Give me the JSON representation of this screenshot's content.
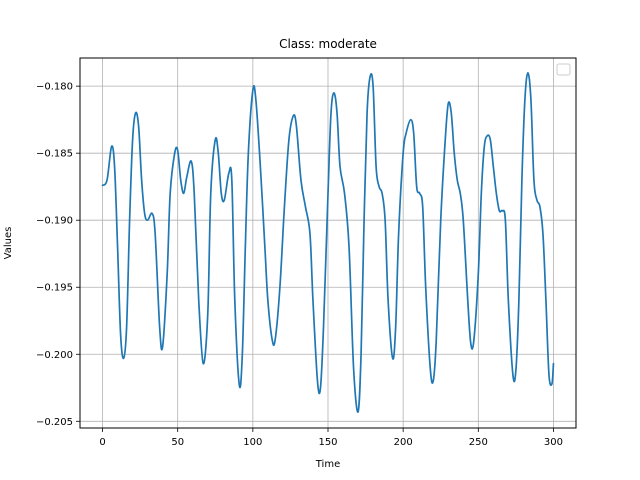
{
  "chart_data": {
    "type": "line",
    "title": "Class: moderate",
    "xlabel": "Time",
    "ylabel": "Values",
    "xlim": [
      -15,
      315
    ],
    "ylim": [
      -0.2055,
      -0.1779
    ],
    "xticks": [
      0,
      50,
      100,
      150,
      200,
      250,
      300
    ],
    "xtick_labels": [
      "0",
      "50",
      "100",
      "150",
      "200",
      "250",
      "300"
    ],
    "yticks": [
      -0.205,
      -0.2,
      -0.195,
      -0.19,
      -0.185,
      -0.18
    ],
    "ytick_labels": [
      "−0.205",
      "−0.200",
      "−0.195",
      "−0.190",
      "−0.185",
      "−0.180"
    ],
    "grid": true,
    "legend": {
      "location": "top-right",
      "entries": []
    },
    "line_color": "#1f77b4",
    "series": [
      {
        "name": "",
        "points": [
          [
            0,
            -0.1874
          ],
          [
            3,
            -0.187
          ],
          [
            6,
            -0.1845
          ],
          [
            8,
            -0.186
          ],
          [
            10,
            -0.192
          ],
          [
            12,
            -0.1985
          ],
          [
            14,
            -0.2003
          ],
          [
            16,
            -0.198
          ],
          [
            18,
            -0.19
          ],
          [
            20,
            -0.184
          ],
          [
            22,
            -0.182
          ],
          [
            24,
            -0.183
          ],
          [
            26,
            -0.187
          ],
          [
            28,
            -0.1895
          ],
          [
            30,
            -0.19
          ],
          [
            33,
            -0.1895
          ],
          [
            35,
            -0.191
          ],
          [
            38,
            -0.198
          ],
          [
            40,
            -0.1994
          ],
          [
            43,
            -0.194
          ],
          [
            45,
            -0.188
          ],
          [
            48,
            -0.185
          ],
          [
            50,
            -0.1848
          ],
          [
            52,
            -0.187
          ],
          [
            54,
            -0.188
          ],
          [
            56,
            -0.1868
          ],
          [
            59,
            -0.1856
          ],
          [
            61,
            -0.188
          ],
          [
            64,
            -0.196
          ],
          [
            67,
            -0.2007
          ],
          [
            70,
            -0.197
          ],
          [
            72,
            -0.188
          ],
          [
            75,
            -0.184
          ],
          [
            77,
            -0.185
          ],
          [
            79,
            -0.188
          ],
          [
            81,
            -0.1885
          ],
          [
            84,
            -0.1865
          ],
          [
            86,
            -0.187
          ],
          [
            88,
            -0.196
          ],
          [
            91,
            -0.2023
          ],
          [
            93,
            -0.2
          ],
          [
            95,
            -0.192
          ],
          [
            97,
            -0.185
          ],
          [
            100,
            -0.1803
          ],
          [
            102,
            -0.181
          ],
          [
            105,
            -0.186
          ],
          [
            108,
            -0.192
          ],
          [
            110,
            -0.196
          ],
          [
            113,
            -0.199
          ],
          [
            115,
            -0.1988
          ],
          [
            118,
            -0.195
          ],
          [
            121,
            -0.189
          ],
          [
            124,
            -0.184
          ],
          [
            127,
            -0.1822
          ],
          [
            129,
            -0.183
          ],
          [
            132,
            -0.187
          ],
          [
            135,
            -0.189
          ],
          [
            138,
            -0.191
          ],
          [
            140,
            -0.196
          ],
          [
            143,
            -0.202
          ],
          [
            145,
            -0.2025
          ],
          [
            147,
            -0.198
          ],
          [
            150,
            -0.188
          ],
          [
            152,
            -0.182
          ],
          [
            154,
            -0.1805
          ],
          [
            156,
            -0.182
          ],
          [
            158,
            -0.186
          ],
          [
            161,
            -0.188
          ],
          [
            164,
            -0.192
          ],
          [
            167,
            -0.201
          ],
          [
            170,
            -0.2043
          ],
          [
            172,
            -0.2
          ],
          [
            174,
            -0.19
          ],
          [
            176,
            -0.182
          ],
          [
            178,
            -0.1793
          ],
          [
            180,
            -0.18
          ],
          [
            182,
            -0.186
          ],
          [
            184,
            -0.1875
          ],
          [
            186,
            -0.188
          ],
          [
            188,
            -0.19
          ],
          [
            190,
            -0.196
          ],
          [
            193,
            -0.2003
          ],
          [
            195,
            -0.198
          ],
          [
            197,
            -0.191
          ],
          [
            200,
            -0.185
          ],
          [
            202,
            -0.1835
          ],
          [
            205,
            -0.1825
          ],
          [
            207,
            -0.1835
          ],
          [
            209,
            -0.1875
          ],
          [
            211,
            -0.188
          ],
          [
            213,
            -0.189
          ],
          [
            215,
            -0.195
          ],
          [
            218,
            -0.201
          ],
          [
            220,
            -0.202
          ],
          [
            222,
            -0.199
          ],
          [
            225,
            -0.19
          ],
          [
            228,
            -0.184
          ],
          [
            230,
            -0.1813
          ],
          [
            232,
            -0.182
          ],
          [
            234,
            -0.185
          ],
          [
            236,
            -0.187
          ],
          [
            238,
            -0.188
          ],
          [
            240,
            -0.19
          ],
          [
            243,
            -0.196
          ],
          [
            245,
            -0.1992
          ],
          [
            247,
            -0.199
          ],
          [
            250,
            -0.194
          ],
          [
            252,
            -0.188
          ],
          [
            254,
            -0.1845
          ],
          [
            256,
            -0.1837
          ],
          [
            258,
            -0.184
          ],
          [
            260,
            -0.186
          ],
          [
            262,
            -0.188
          ],
          [
            264,
            -0.1893
          ],
          [
            266,
            -0.1893
          ],
          [
            268,
            -0.19
          ],
          [
            270,
            -0.196
          ],
          [
            273,
            -0.2015
          ],
          [
            275,
            -0.2012
          ],
          [
            277,
            -0.196
          ],
          [
            279,
            -0.187
          ],
          [
            281,
            -0.181
          ],
          [
            283,
            -0.179
          ],
          [
            285,
            -0.181
          ],
          [
            287,
            -0.187
          ],
          [
            289,
            -0.1885
          ],
          [
            291,
            -0.189
          ],
          [
            293,
            -0.191
          ],
          [
            295,
            -0.196
          ],
          [
            297,
            -0.2015
          ],
          [
            299,
            -0.2022
          ],
          [
            300,
            -0.2007
          ]
        ]
      }
    ]
  }
}
